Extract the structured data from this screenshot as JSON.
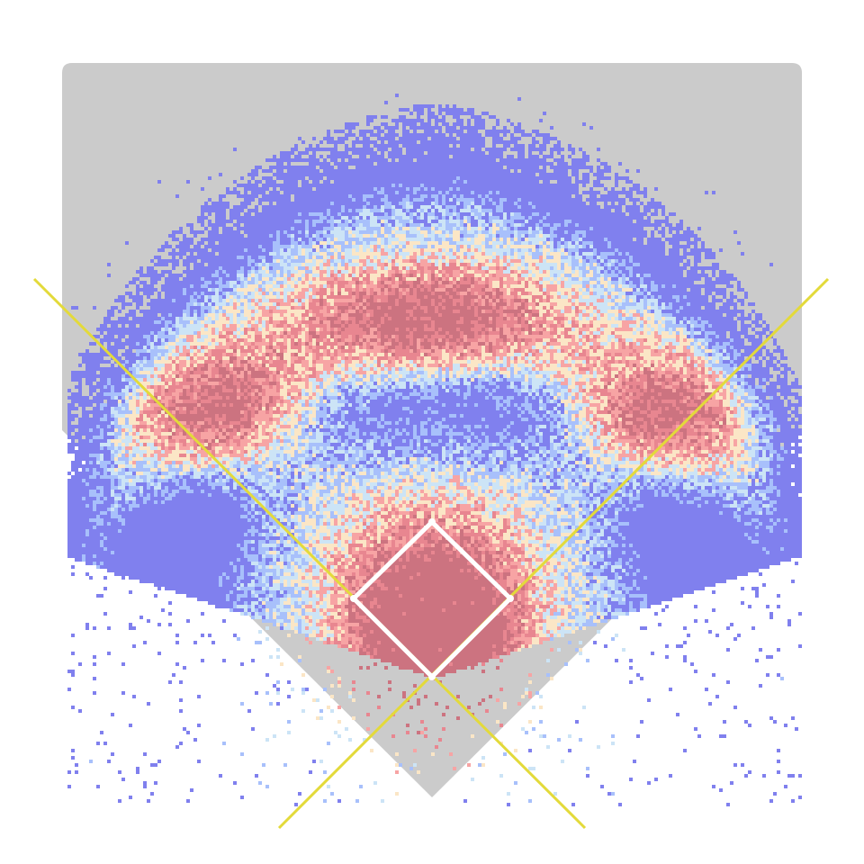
{
  "chart_data": {
    "type": "heatmap",
    "title": "",
    "xlabel": "",
    "ylabel": "",
    "grid": false,
    "legend": "none",
    "colors": {
      "background": "#ffffff",
      "field": "#cbcbcb",
      "foul_lines": "#e3da3a",
      "infield_diamond": "#ffffff",
      "high_density": "#cc7380",
      "mid_high_density": "#f08c94",
      "mid_density": "#fce0c2",
      "mid_low_density": "#bcd8f4",
      "low_density": "#8080ee"
    },
    "color_scale": [
      "#8080ee",
      "#a8c0fb",
      "#cce4f6",
      "#fbe6c6",
      "#f7a4a4",
      "#e88690",
      "#cc7380"
    ],
    "hotspots": [
      {
        "name": "left-field",
        "x": -232,
        "y": 290,
        "intensity": 0.95
      },
      {
        "name": "center-field",
        "x": -5,
        "y": 395,
        "intensity": 1.0
      },
      {
        "name": "right-field",
        "x": 245,
        "y": 285,
        "intensity": 0.95
      },
      {
        "name": "infield",
        "x": 0,
        "y": 95,
        "intensity": 0.9
      },
      {
        "name": "home-plate-area",
        "x": 0,
        "y": 0,
        "intensity": 0.85
      }
    ],
    "cool_band": {
      "center_y": 250,
      "spread": 45,
      "intensity": 0.65
    }
  }
}
